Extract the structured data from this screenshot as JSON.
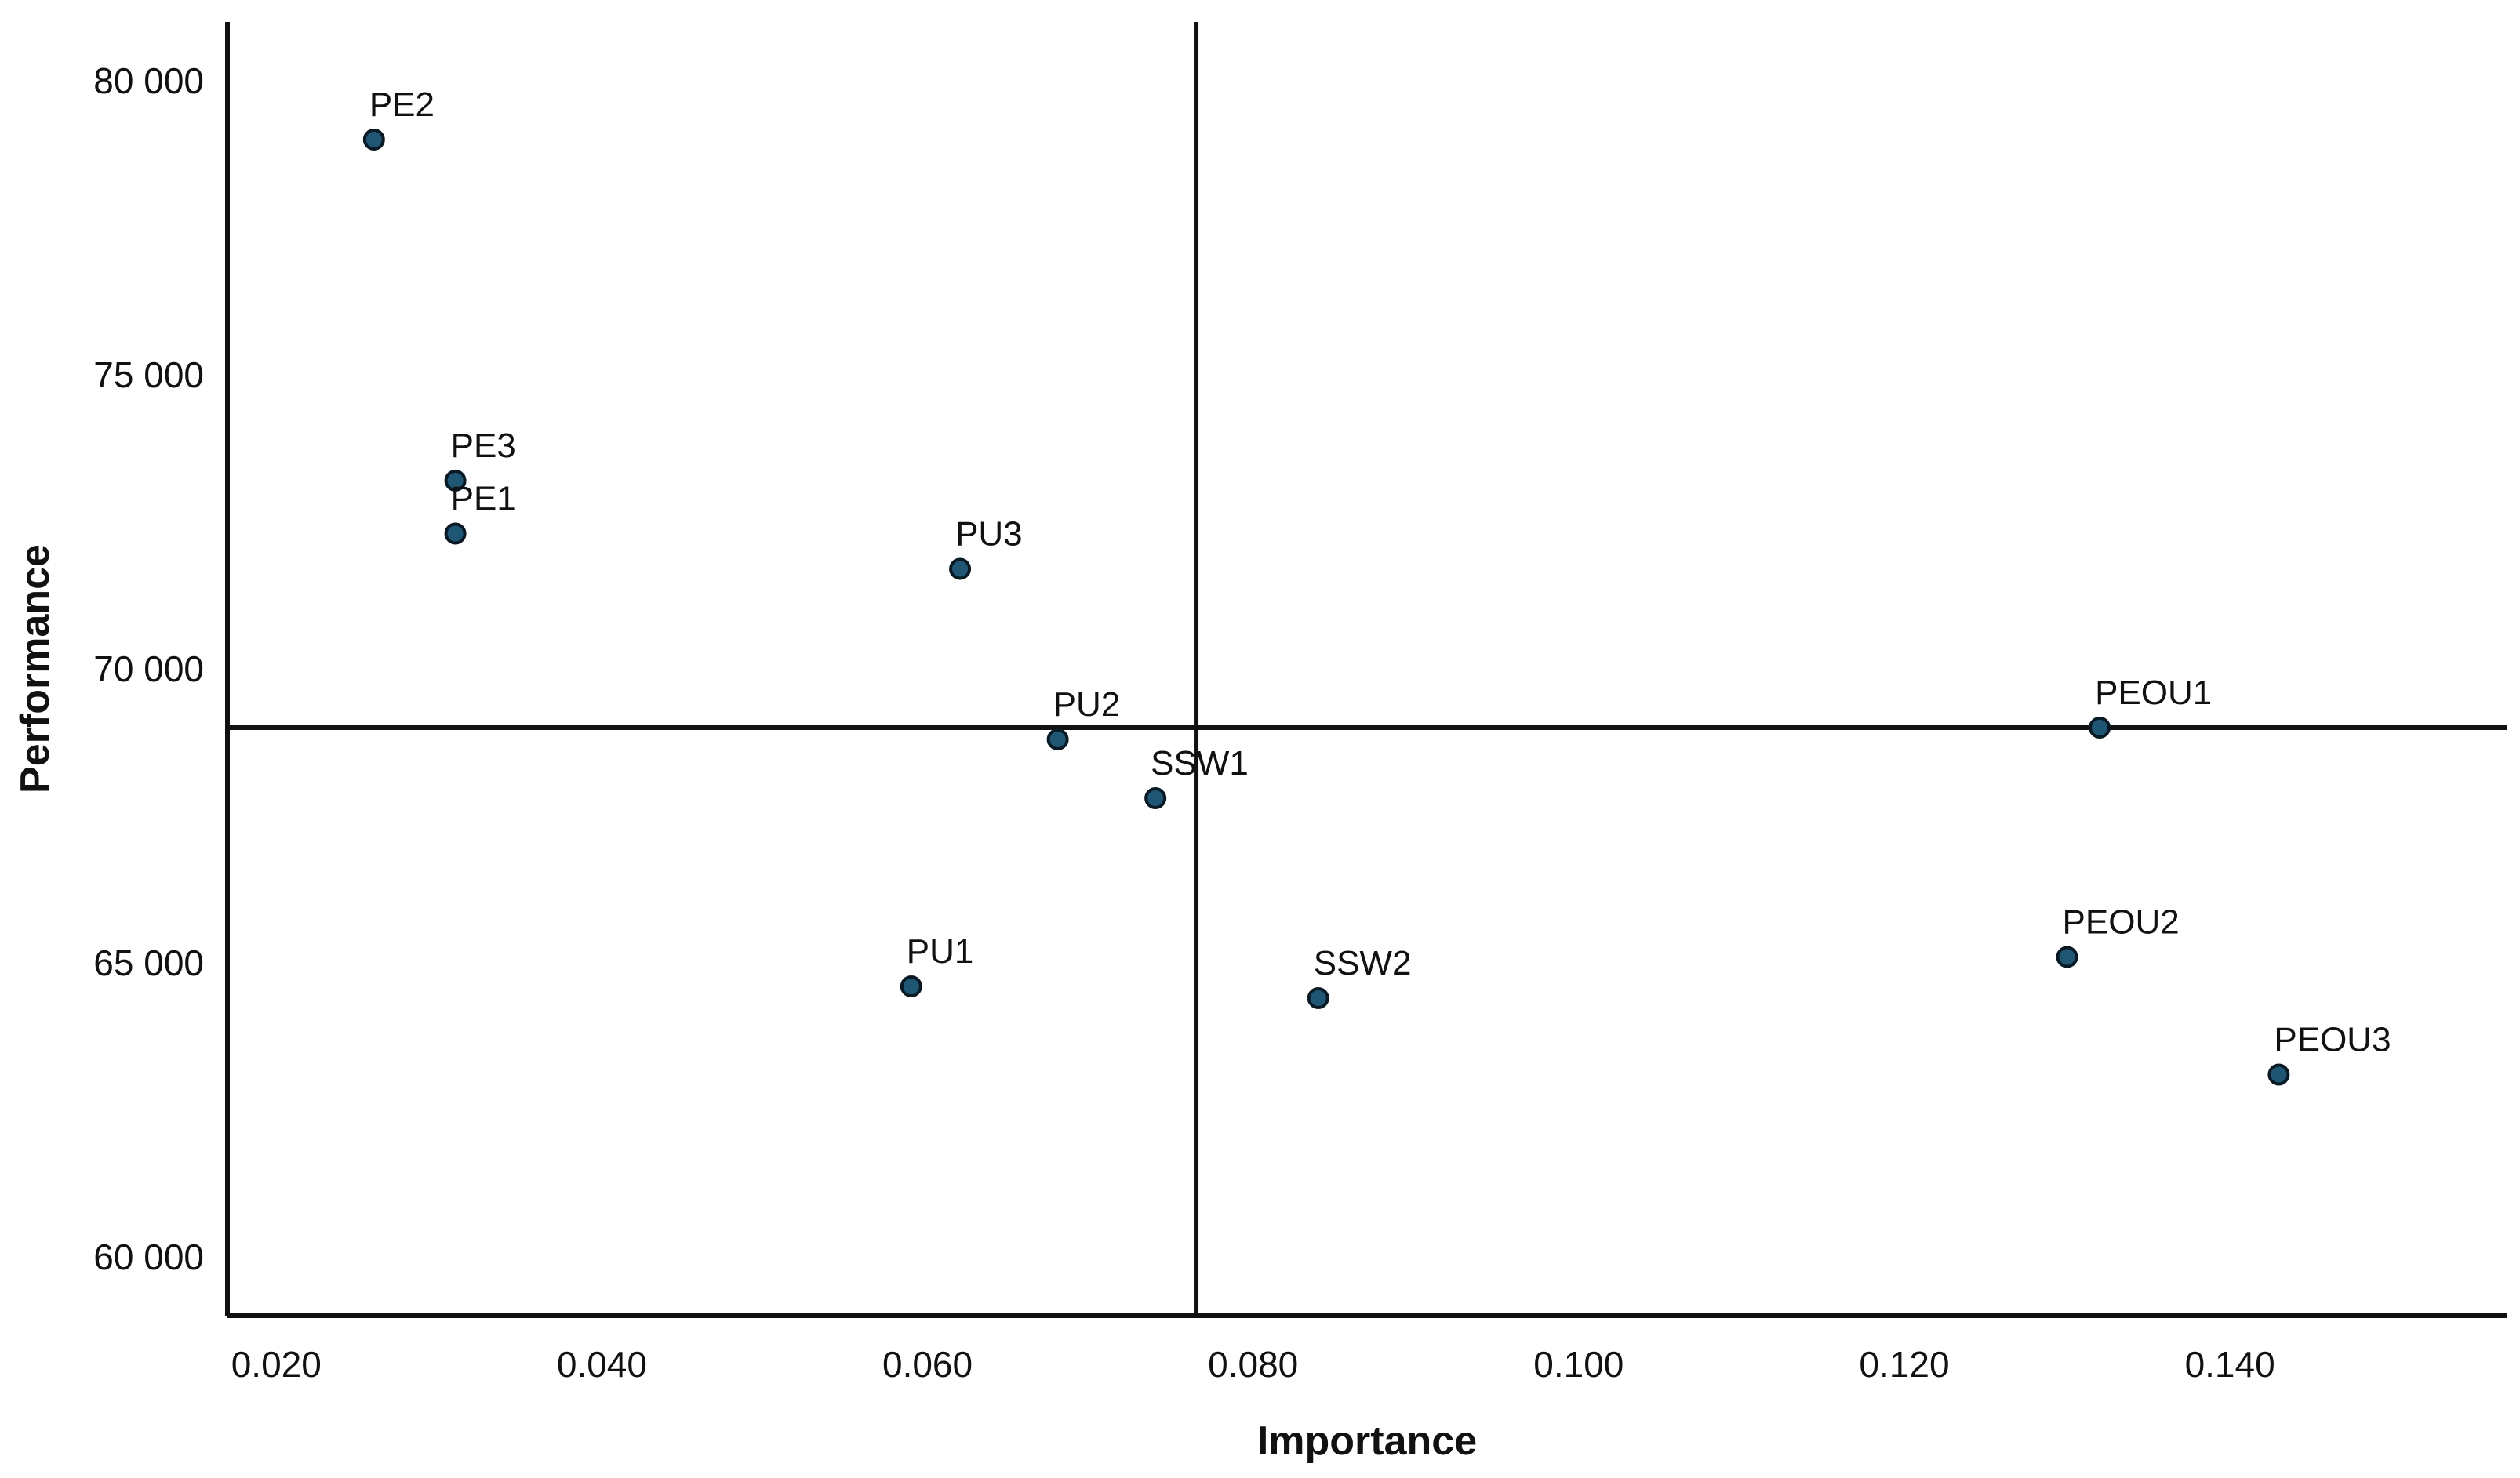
{
  "chart_data": {
    "type": "scatter",
    "title": "",
    "xlabel": "Importance",
    "ylabel": "Performance",
    "xlim": [
      0.017,
      0.157
    ],
    "ylim": [
      59000,
      81000
    ],
    "xticks": [
      "0.020",
      "0.040",
      "0.060",
      "0.080",
      "0.100",
      "0.120",
      "0.140"
    ],
    "yticks": [
      "60 000",
      "65 000",
      "70 000",
      "75 000",
      "80 000"
    ],
    "reference_lines": {
      "x": 0.0765,
      "y": 69000
    },
    "marker_color": "#1f5673",
    "marker_edge_color": "#0a1a24",
    "points": [
      {
        "label": "PE2",
        "x": 0.026,
        "y": 79000
      },
      {
        "label": "PE3",
        "x": 0.031,
        "y": 73200
      },
      {
        "label": "PE1",
        "x": 0.031,
        "y": 72300
      },
      {
        "label": "PU3",
        "x": 0.062,
        "y": 71700
      },
      {
        "label": "PU2",
        "x": 0.068,
        "y": 68800
      },
      {
        "label": "SSW1",
        "x": 0.074,
        "y": 67800
      },
      {
        "label": "PU1",
        "x": 0.059,
        "y": 64600
      },
      {
        "label": "SSW2",
        "x": 0.084,
        "y": 64400
      },
      {
        "label": "PEOU1",
        "x": 0.132,
        "y": 69000
      },
      {
        "label": "PEOU2",
        "x": 0.13,
        "y": 65100
      },
      {
        "label": "PEOU3",
        "x": 0.143,
        "y": 63100
      }
    ]
  }
}
